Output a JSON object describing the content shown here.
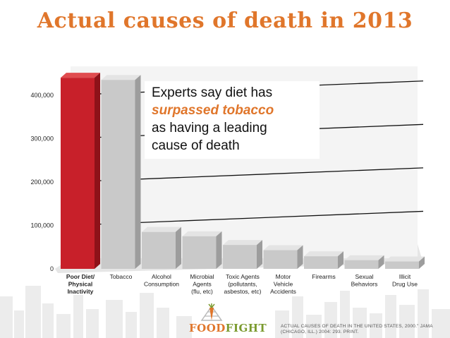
{
  "title": "Actual causes of death in 2013",
  "callout": {
    "line1": "Experts say diet has",
    "highlight": "surpassed tobacco",
    "line3": "as having a leading",
    "line4": "cause of death"
  },
  "logo": {
    "food": "FOOD",
    "fight": "FIGHT"
  },
  "source": "ACTUAL CAUSES OF DEATH IN THE UNITED STATES, 2000.\" JAMA (CHICAGO, ILL.) 2004: 293. PRINT.",
  "colors": {
    "title": "#e0762b",
    "highlight_bar": "#c8202a",
    "bar": "#c9c9c9",
    "logo_green": "#7a9a2e"
  },
  "chart_data": {
    "type": "bar",
    "title": "Actual causes of death in 2013",
    "categories": [
      [
        "Poor Diet/",
        "Physical",
        "Inactivity"
      ],
      [
        "Tobacco"
      ],
      [
        "Alcohol",
        "Consumption"
      ],
      [
        "Microbial",
        "Agents",
        "(flu, etc)"
      ],
      [
        "Toxic Agents",
        "(pollutants,",
        "asbestos, etc)"
      ],
      [
        "Motor",
        "Vehicle",
        "Accidents"
      ],
      [
        "Firearms"
      ],
      [
        "Sexual",
        "Behaviors"
      ],
      [
        "Illicit",
        "Drug Use"
      ]
    ],
    "values": [
      440000,
      435000,
      85000,
      75000,
      55000,
      43000,
      29000,
      20000,
      17000
    ],
    "highlight_index": 0,
    "yticks": [
      0,
      100000,
      200000,
      300000,
      400000
    ],
    "ytick_labels": [
      "0",
      "100,000",
      "200,000",
      "300,000",
      "400,000"
    ],
    "ylim": [
      0,
      450000
    ],
    "grid": true,
    "xlabel": "",
    "ylabel": ""
  }
}
